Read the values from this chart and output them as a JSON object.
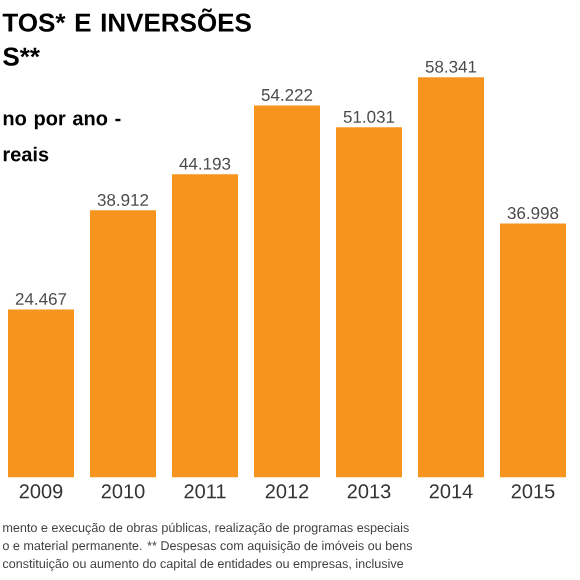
{
  "chart_data": {
    "type": "bar",
    "title": "TOS* E INVERSÕES S**",
    "subtitle": "no por ano - reais",
    "categories": [
      "2009",
      "2010",
      "2011",
      "2012",
      "2013",
      "2014",
      "2015"
    ],
    "values": [
      24467,
      38912,
      44193,
      54222,
      51031,
      58341,
      36998
    ],
    "value_labels": [
      "24.467",
      "38.912",
      "44.193",
      "54.222",
      "51.031",
      "58.341",
      "36.998"
    ],
    "color": "#f7941d",
    "ylim": [
      0,
      58341
    ],
    "tick_labels": "x",
    "annotations": [
      "mento e execução de obras públicas, realização de programas especiais",
      "o e material permanente. ** Despesas com aquisição de imóveis ou bens",
      "constituição ou aumento do capital de entidades ou empresas, inclusive"
    ]
  }
}
